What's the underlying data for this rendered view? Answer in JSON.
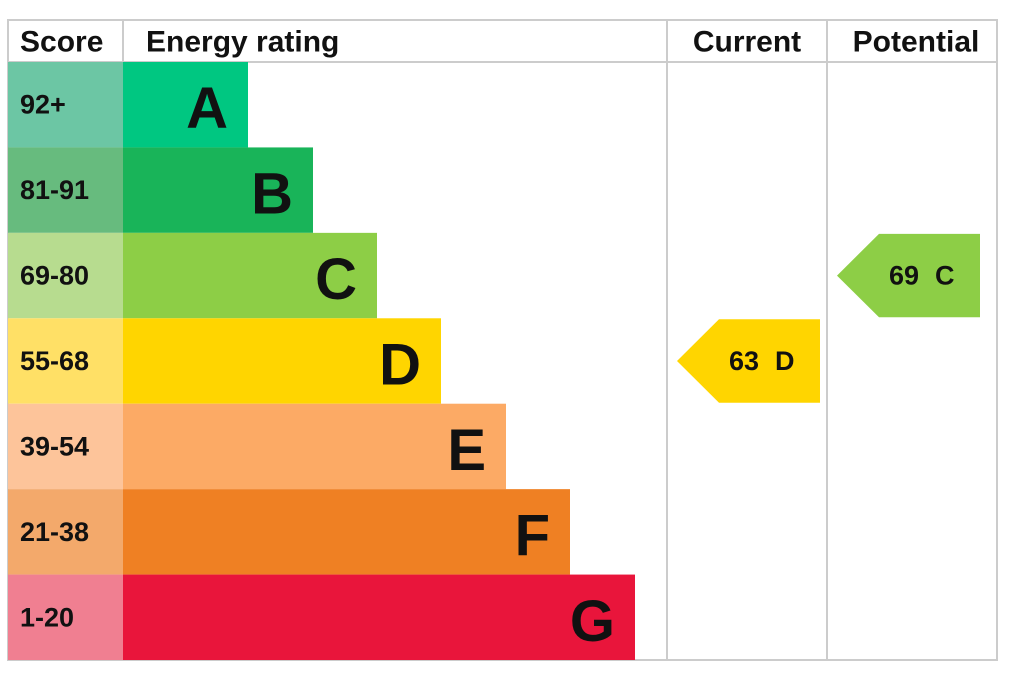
{
  "header": {
    "score": "Score",
    "rating": "Energy rating",
    "current": "Current",
    "potential": "Potential"
  },
  "bands": [
    {
      "score": "92+",
      "letter": "A"
    },
    {
      "score": "81-91",
      "letter": "B"
    },
    {
      "score": "69-80",
      "letter": "C"
    },
    {
      "score": "55-68",
      "letter": "D"
    },
    {
      "score": "39-54",
      "letter": "E"
    },
    {
      "score": "21-38",
      "letter": "F"
    },
    {
      "score": "1-20",
      "letter": "G"
    }
  ],
  "current": {
    "value": 63,
    "letter": "D"
  },
  "potential": {
    "value": 69,
    "letter": "C"
  }
}
